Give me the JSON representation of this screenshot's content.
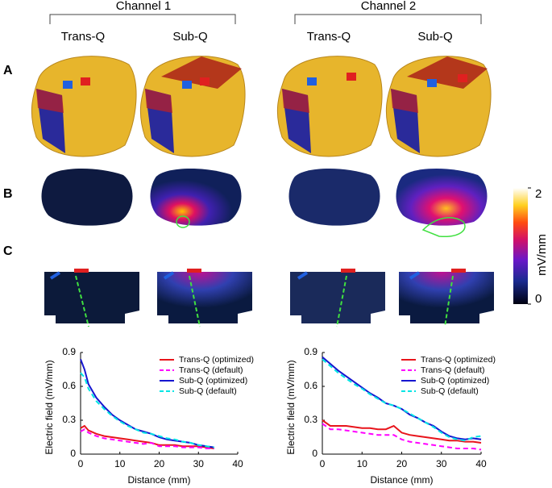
{
  "figure": {
    "channels": [
      "Channel 1",
      "Channel 2"
    ],
    "columns": [
      "Trans-Q",
      "Sub-Q",
      "Trans-Q",
      "Sub-Q"
    ],
    "rows": [
      "A",
      "B",
      "C"
    ]
  },
  "colorbar": {
    "lim": [
      0,
      2
    ],
    "ticks": [
      0,
      2
    ],
    "label": "mV/mm"
  },
  "chart_data": [
    {
      "type": "line",
      "xlabel": "Distance (mm)",
      "ylabel": "Electric field (mV/mm)",
      "xlim": [
        0,
        40
      ],
      "xticks": [
        0,
        10,
        20,
        30,
        40
      ],
      "ylim": [
        0,
        0.9
      ],
      "yticks": [
        0,
        0.3,
        0.6,
        0.9
      ],
      "x": [
        0,
        1,
        2,
        4,
        6,
        8,
        10,
        12,
        14,
        16,
        18,
        20,
        22,
        24,
        26,
        28,
        30,
        32,
        34
      ],
      "series": [
        {
          "name": "Trans-Q (optimized)",
          "color": "#e8141b",
          "dashed": false,
          "values": [
            0.23,
            0.25,
            0.21,
            0.18,
            0.16,
            0.15,
            0.14,
            0.13,
            0.12,
            0.11,
            0.1,
            0.08,
            0.08,
            0.08,
            0.07,
            0.07,
            0.07,
            0.06,
            0.05
          ]
        },
        {
          "name": "Trans-Q (default)",
          "color": "#ff00ff",
          "dashed": true,
          "values": [
            0.2,
            0.22,
            0.19,
            0.16,
            0.14,
            0.13,
            0.12,
            0.11,
            0.1,
            0.09,
            0.1,
            0.07,
            0.07,
            0.07,
            0.06,
            0.06,
            0.06,
            0.05,
            0.05
          ]
        },
        {
          "name": "Sub-Q (optimized)",
          "color": "#1515d0",
          "dashed": false,
          "values": [
            0.84,
            0.75,
            0.62,
            0.5,
            0.42,
            0.35,
            0.3,
            0.26,
            0.22,
            0.2,
            0.18,
            0.15,
            0.13,
            0.12,
            0.11,
            0.1,
            0.08,
            0.07,
            0.06
          ]
        },
        {
          "name": "Sub-Q (default)",
          "color": "#00e5e5",
          "dashed": true,
          "values": [
            0.72,
            0.68,
            0.58,
            0.47,
            0.4,
            0.34,
            0.29,
            0.25,
            0.22,
            0.19,
            0.18,
            0.16,
            0.14,
            0.13,
            0.11,
            0.1,
            0.08,
            0.07,
            0.06
          ]
        }
      ]
    },
    {
      "type": "line",
      "xlabel": "Distance (mm)",
      "ylabel": "Electric field (mV/mm)",
      "xlim": [
        0,
        40
      ],
      "xticks": [
        0,
        10,
        20,
        30,
        40
      ],
      "ylim": [
        0,
        0.9
      ],
      "yticks": [
        0,
        0.3,
        0.6,
        0.9
      ],
      "x": [
        0,
        2,
        4,
        6,
        8,
        10,
        12,
        14,
        16,
        18,
        20,
        22,
        24,
        26,
        28,
        30,
        32,
        34,
        36,
        38,
        40
      ],
      "series": [
        {
          "name": "Trans-Q (optimized)",
          "color": "#e8141b",
          "dashed": false,
          "values": [
            0.3,
            0.25,
            0.25,
            0.25,
            0.24,
            0.23,
            0.23,
            0.22,
            0.22,
            0.25,
            0.19,
            0.17,
            0.16,
            0.15,
            0.14,
            0.13,
            0.12,
            0.12,
            0.11,
            0.11,
            0.1
          ]
        },
        {
          "name": "Trans-Q (default)",
          "color": "#ff00ff",
          "dashed": true,
          "values": [
            0.27,
            0.22,
            0.22,
            0.21,
            0.2,
            0.19,
            0.18,
            0.17,
            0.17,
            0.17,
            0.13,
            0.11,
            0.1,
            0.09,
            0.08,
            0.07,
            0.06,
            0.05,
            0.05,
            0.05,
            0.04
          ]
        },
        {
          "name": "Sub-Q (optimized)",
          "color": "#1515d0",
          "dashed": false,
          "values": [
            0.86,
            0.8,
            0.74,
            0.69,
            0.64,
            0.59,
            0.54,
            0.5,
            0.45,
            0.43,
            0.4,
            0.35,
            0.32,
            0.28,
            0.25,
            0.2,
            0.16,
            0.14,
            0.13,
            0.14,
            0.13
          ]
        },
        {
          "name": "Sub-Q (default)",
          "color": "#00e5e5",
          "dashed": true,
          "values": [
            0.84,
            0.78,
            0.72,
            0.67,
            0.62,
            0.58,
            0.53,
            0.49,
            0.45,
            0.43,
            0.4,
            0.36,
            0.32,
            0.28,
            0.24,
            0.19,
            0.15,
            0.13,
            0.12,
            0.15,
            0.16
          ]
        }
      ]
    }
  ]
}
